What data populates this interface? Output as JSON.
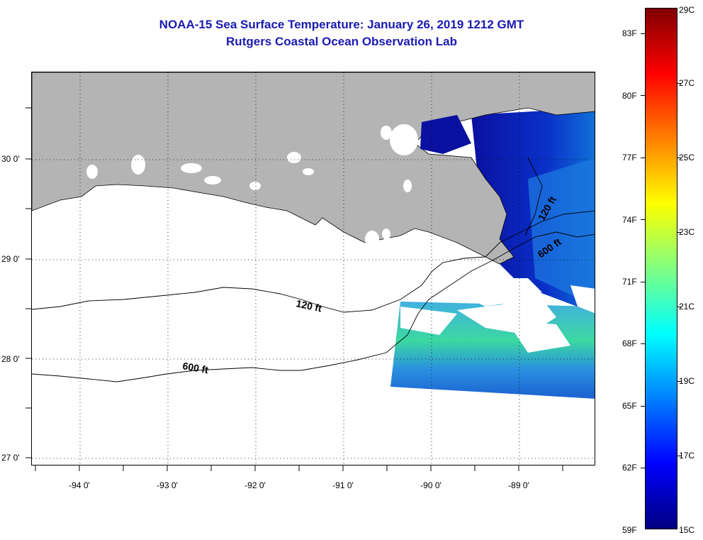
{
  "title_line1": "NOAA-15 Sea Surface Temperature:  January 26, 2019 1212 GMT",
  "title_line2": "Rutgers Coastal Ocean Observation Lab",
  "colors": {
    "title": "#1a1ab4",
    "land": "#b4b4b4",
    "ocean_no_data": "#ffffff",
    "gridline": "#000000"
  },
  "map": {
    "lat_labels": [
      {
        "text": "30 0'",
        "lat": 30
      },
      {
        "text": "29 0'",
        "lat": 29
      },
      {
        "text": "28 0'",
        "lat": 28
      },
      {
        "text": "27 0'",
        "lat": 27
      }
    ],
    "lon_labels": [
      {
        "text": "-94 0'",
        "lon": -94
      },
      {
        "text": "-93 0'",
        "lon": -93
      },
      {
        "text": "-92 0'",
        "lon": -92
      },
      {
        "text": "-91 0'",
        "lon": -91
      },
      {
        "text": "-90 0'",
        "lon": -90
      },
      {
        "text": "-89 0'",
        "lon": -89
      }
    ],
    "contour_labels": [
      {
        "text": "120 ft",
        "where": "central shelf"
      },
      {
        "text": "600 ft",
        "where": "western shelf edge"
      },
      {
        "text": "120 ft",
        "where": "east near delta"
      },
      {
        "text": "600 ft",
        "where": "east near delta"
      }
    ]
  },
  "colorbar": {
    "fahrenheit_labels": [
      "83F",
      "80F",
      "77F",
      "74F",
      "71F",
      "68F",
      "65F",
      "62F",
      "59F"
    ],
    "celsius_labels": [
      "29C",
      "27C",
      "25C",
      "23C",
      "21C",
      "19C",
      "17C",
      "15C"
    ],
    "stops": [
      "#800000",
      "#ff0000",
      "#ff8000",
      "#ffff00",
      "#80ff80",
      "#00ffff",
      "#0080ff",
      "#0000ff",
      "#000080"
    ]
  }
}
